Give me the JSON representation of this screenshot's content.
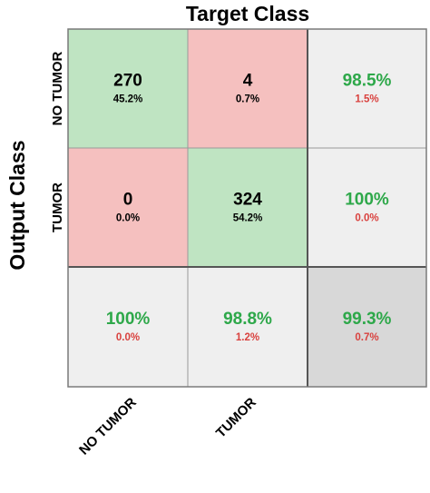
{
  "chart_data": {
    "type": "heatmap",
    "subtype": "confusion-matrix",
    "title": "",
    "xlabel": "Target Class",
    "ylabel": "Output Class",
    "classes": [
      "NO TUMOR",
      "TUMOR"
    ],
    "cells": [
      [
        {
          "count": "270",
          "percent": "45.2%"
        },
        {
          "count": "4",
          "percent": "0.7%"
        }
      ],
      [
        {
          "count": "0",
          "percent": "0.0%"
        },
        {
          "count": "324",
          "percent": "54.2%"
        }
      ]
    ],
    "row_summary": [
      {
        "correct": "98.5%",
        "error": "1.5%"
      },
      {
        "correct": "100%",
        "error": "0.0%"
      }
    ],
    "col_summary": [
      {
        "correct": "100%",
        "error": "0.0%"
      },
      {
        "correct": "98.8%",
        "error": "1.2%"
      }
    ],
    "overall": {
      "correct": "99.3%",
      "error": "0.7%"
    },
    "colors": {
      "correct_cell": "#bfe4c2",
      "error_cell": "#f5c0bf",
      "summary_cell": "#efefef",
      "overall_cell": "#d8d8d8",
      "correct_text": "#2ea84a",
      "error_text": "#d9413e",
      "count_text": "#000000"
    }
  }
}
